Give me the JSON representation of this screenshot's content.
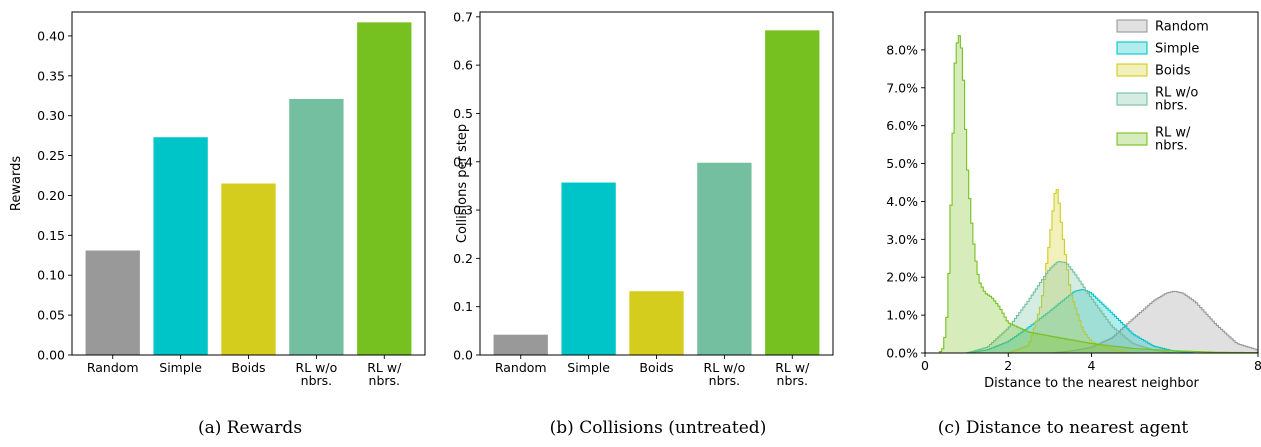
{
  "chart_data": [
    {
      "type": "bar",
      "caption": "(a) Rewards",
      "ylabel": "Rewards",
      "xlabel": "",
      "ylim": [
        0,
        0.43
      ],
      "yticks": [
        "0.00",
        "0.05",
        "0.10",
        "0.15",
        "0.20",
        "0.25",
        "0.30",
        "0.35",
        "0.40"
      ],
      "categories": [
        "Random",
        "Simple",
        "Boids",
        "RL w/o\nnbrs.",
        "RL w/\nnbrs."
      ],
      "values": [
        0.131,
        0.273,
        0.215,
        0.321,
        0.417
      ],
      "colors": [
        "#999999",
        "#00c5c8",
        "#d4cd1e",
        "#74bfa0",
        "#76c11f"
      ]
    },
    {
      "type": "bar",
      "caption": "(b) Collisions (untreated)",
      "ylabel": "Collisions per step",
      "xlabel": "",
      "ylim": [
        0,
        0.71
      ],
      "yticks": [
        "0.0",
        "0.1",
        "0.2",
        "0.3",
        "0.4",
        "0.5",
        "0.6",
        "0.7"
      ],
      "categories": [
        "Random",
        "Simple",
        "Boids",
        "RL w/o\nnbrs.",
        "RL w/\nnbrs."
      ],
      "values": [
        0.042,
        0.357,
        0.132,
        0.398,
        0.672
      ],
      "colors": [
        "#999999",
        "#00c5c8",
        "#d4cd1e",
        "#74bfa0",
        "#76c11f"
      ]
    },
    {
      "type": "area",
      "subtype": "histogram",
      "caption": "(c) Distance to nearest agent",
      "xlabel": "Distance to the nearest neighbor",
      "ylabel": "",
      "xlim": [
        0,
        8
      ],
      "ylim": [
        0,
        0.09
      ],
      "xticks": [
        "0",
        "2",
        "4",
        "8"
      ],
      "yticks": [
        "0.0%",
        "1.0%",
        "2.0%",
        "3.0%",
        "4.0%",
        "5.0%",
        "6.0%",
        "7.0%",
        "8.0%"
      ],
      "legend_position": "top-right",
      "series": [
        {
          "name": "Random",
          "color": "#999999",
          "x": [
            3.0,
            3.5,
            4.0,
            4.5,
            5.0,
            5.5,
            5.8,
            6.0,
            6.2,
            6.5,
            7.0,
            7.5,
            8.0
          ],
          "values": [
            0.0,
            0.0005,
            0.0015,
            0.004,
            0.009,
            0.0138,
            0.0158,
            0.0163,
            0.0158,
            0.0135,
            0.0075,
            0.0025,
            0.0008
          ]
        },
        {
          "name": "Simple",
          "color": "#00c5c8",
          "x": [
            1.0,
            1.5,
            2.0,
            2.5,
            3.0,
            3.3,
            3.6,
            3.8,
            4.0,
            4.5,
            5.0,
            5.5,
            6.0,
            6.5
          ],
          "values": [
            0.0,
            0.0008,
            0.003,
            0.0068,
            0.011,
            0.0137,
            0.0163,
            0.0168,
            0.0158,
            0.0105,
            0.005,
            0.0018,
            0.0005,
            0.0
          ]
        },
        {
          "name": "Boids",
          "color": "#d4cd1e",
          "x": [
            2.0,
            2.5,
            2.8,
            3.0,
            3.1,
            3.15,
            3.2,
            3.3,
            3.5,
            3.8,
            4.0,
            4.5,
            5.0
          ],
          "values": [
            0.0,
            0.002,
            0.013,
            0.03,
            0.04,
            0.0442,
            0.042,
            0.032,
            0.016,
            0.006,
            0.003,
            0.001,
            0.0
          ]
        },
        {
          "name": "RL w/o\nnbrs.",
          "color": "#74bfa0",
          "x": [
            1.0,
            1.5,
            2.0,
            2.5,
            2.8,
            3.0,
            3.2,
            3.4,
            3.6,
            4.0,
            4.5,
            5.0,
            5.5,
            6.0
          ],
          "values": [
            0.0,
            0.0015,
            0.0065,
            0.014,
            0.019,
            0.0222,
            0.0242,
            0.0238,
            0.021,
            0.0145,
            0.007,
            0.0025,
            0.0008,
            0.0
          ]
        },
        {
          "name": "RL w/\nnbrs.",
          "color": "#76c11f",
          "x": [
            0.35,
            0.45,
            0.55,
            0.65,
            0.72,
            0.8,
            0.85,
            0.9,
            0.95,
            1.0,
            1.1,
            1.2,
            1.3,
            1.45,
            1.6,
            1.8,
            2.0,
            2.5,
            3.0,
            4.0,
            5.0,
            6.0,
            7.0,
            8.0
          ],
          "values": [
            0.0,
            0.0015,
            0.012,
            0.048,
            0.076,
            0.0845,
            0.083,
            0.078,
            0.066,
            0.052,
            0.037,
            0.026,
            0.019,
            0.0158,
            0.0148,
            0.012,
            0.008,
            0.0055,
            0.0045,
            0.0025,
            0.0012,
            0.0006,
            0.0002,
            0.0001
          ]
        }
      ]
    }
  ]
}
